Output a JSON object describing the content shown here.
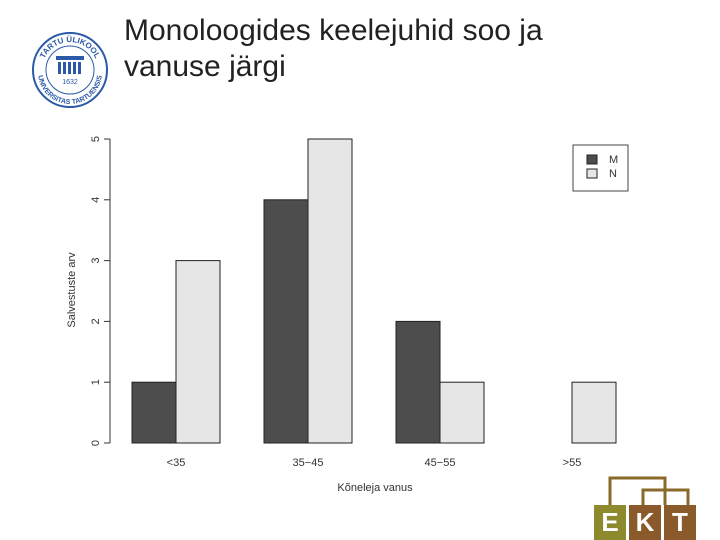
{
  "chart_data": {
    "type": "bar",
    "title": "Monoloogides keelejuhid soo ja vanuse järgi",
    "categories": [
      "<35",
      "35−45",
      "45−55",
      ">55"
    ],
    "series": [
      {
        "name": "M",
        "color": "#4d4d4d",
        "values": [
          1,
          4,
          2,
          0
        ]
      },
      {
        "name": "N",
        "color": "#e6e6e6",
        "values": [
          3,
          5,
          1,
          1
        ]
      }
    ],
    "x_label": "Kõneleja vanus",
    "y_label": "Salvestuste arv",
    "ylim": [
      0,
      5
    ],
    "yticks": [
      0,
      1,
      2,
      3,
      4,
      5
    ],
    "legend": "top-right"
  },
  "logo": {
    "top": "TARTU ÜLIKOOL",
    "bottom": "UNIVERSITAS TARTUENSIS",
    "year": "1632"
  },
  "ekt": [
    "E",
    "K",
    "T"
  ]
}
